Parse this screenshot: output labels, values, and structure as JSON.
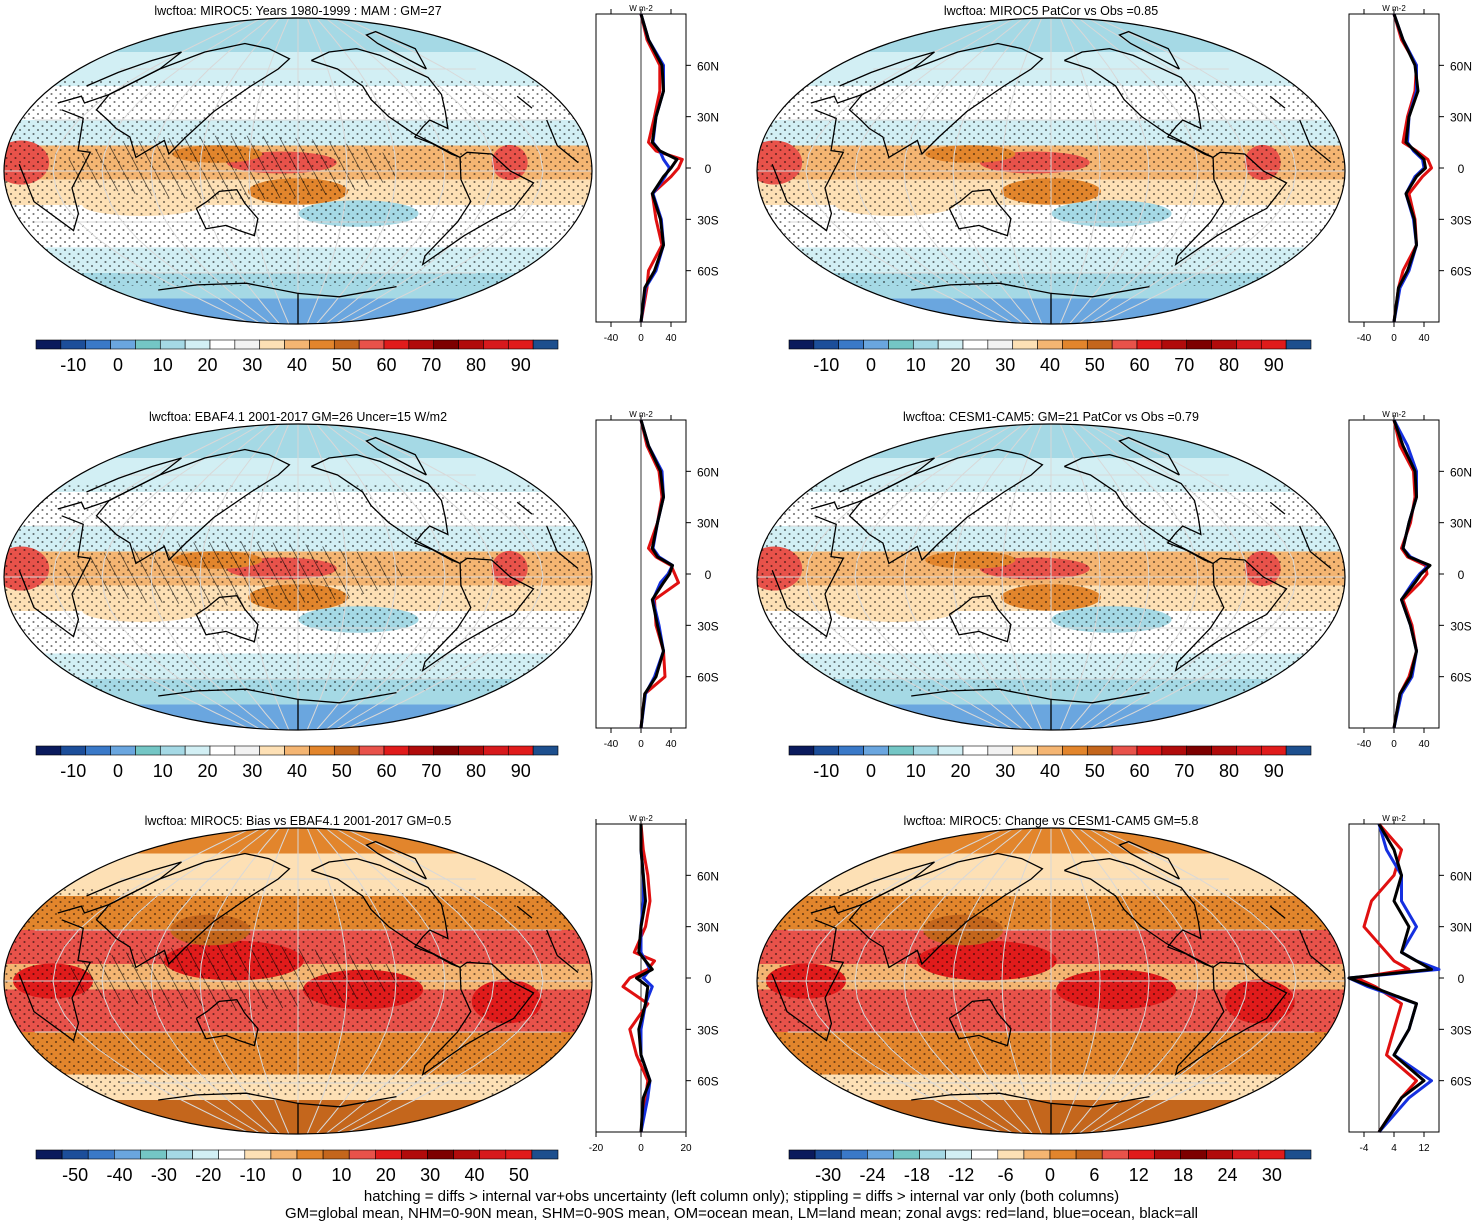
{
  "colors": {
    "full": [
      "#0a1a5c",
      "#1c4e9a",
      "#3a79c8",
      "#6aa6df",
      "#74c6c5",
      "#a5d9e5",
      "#d2eff4",
      "#ffffff",
      "#f2f2f2",
      "#fde0b5",
      "#f4b572",
      "#e2852c",
      "#c4661c",
      "#e8524a",
      "#e01b1b",
      "#b10b0b",
      "#7d0000",
      "#b10b0b",
      "#d7191c",
      "#e01b1b",
      "#1d4f8e"
    ],
    "diff": [
      "#0a1a5c",
      "#1c4e9a",
      "#3a79c8",
      "#6aa6df",
      "#74c6c5",
      "#a5d9e5",
      "#d2eff4",
      "#ffffff",
      "#fde0b5",
      "#f4b572",
      "#e2852c",
      "#c4661c",
      "#e8524a",
      "#e01b1b",
      "#b10b0b",
      "#7d0000",
      "#b10b0b",
      "#d7191c",
      "#e01b1b",
      "#1d4f8e"
    ],
    "line_land": "#e01010",
    "line_ocean": "#1530e0",
    "line_all": "#000000"
  },
  "units": "W m-2",
  "lat_labels": [
    "60N",
    "30N",
    "0",
    "30S",
    "60S"
  ],
  "panels": [
    {
      "title": "lwcftoa: MIROC5: Years 1980-1999 : MAM : GM=27",
      "scale": "full",
      "colorbar_labels": [
        "-10",
        "0",
        "10",
        "20",
        "30",
        "40",
        "50",
        "60",
        "70",
        "80",
        "90"
      ],
      "zonal_ticks": [
        "-40",
        "0",
        "40"
      ],
      "zonal_range": [
        -60,
        60
      ]
    },
    {
      "title": "lwcftoa: MIROC5 PatCor vs Obs =0.85",
      "scale": "full",
      "colorbar_labels": [
        "-10",
        "0",
        "10",
        "20",
        "30",
        "40",
        "50",
        "60",
        "70",
        "80",
        "90"
      ],
      "zonal_ticks": [
        "-40",
        "0",
        "40"
      ],
      "zonal_range": [
        -60,
        60
      ]
    },
    {
      "title": "lwcftoa: EBAF4.1 2001-2017 GM=26 Uncer=15 W/m2",
      "scale": "full",
      "colorbar_labels": [
        "-10",
        "0",
        "10",
        "20",
        "30",
        "40",
        "50",
        "60",
        "70",
        "80",
        "90"
      ],
      "zonal_ticks": [
        "-40",
        "0",
        "40"
      ],
      "zonal_range": [
        -60,
        60
      ]
    },
    {
      "title": "lwcftoa: CESM1-CAM5: GM=21 PatCor vs Obs =0.79",
      "scale": "full",
      "colorbar_labels": [
        "-10",
        "0",
        "10",
        "20",
        "30",
        "40",
        "50",
        "60",
        "70",
        "80",
        "90"
      ],
      "zonal_ticks": [
        "-40",
        "0",
        "40"
      ],
      "zonal_range": [
        -60,
        60
      ]
    },
    {
      "title": "lwcftoa: MIROC5: Bias vs EBAF4.1 2001-2017 GM=0.5",
      "scale": "diff",
      "colorbar_labels": [
        "-50",
        "-40",
        "-30",
        "-20",
        "-10",
        "0",
        "10",
        "20",
        "30",
        "40",
        "50"
      ],
      "zonal_ticks": [
        "-20",
        "0",
        "20"
      ],
      "zonal_range": [
        -20,
        20
      ]
    },
    {
      "title": "lwcftoa: MIROC5: Change vs CESM1-CAM5 GM=5.8",
      "scale": "diff",
      "colorbar_labels": [
        "-30",
        "-24",
        "-18",
        "-12",
        "-6",
        "0",
        "6",
        "12",
        "18",
        "24",
        "30"
      ],
      "zonal_ticks": [
        "-4",
        "4",
        "12"
      ],
      "zonal_range": [
        -8,
        16
      ]
    }
  ],
  "footer": {
    "line1": "hatching = diffs > internal var+obs uncertainty (left column only); stippling = diffs > internal var only (both columns)",
    "line2": "GM=global mean, NHM=0-90N mean, SHM=0-90S mean, OM=ocean mean, LM=land mean; zonal avgs: red=land, blue=ocean, black=all"
  },
  "chart_data": [
    {
      "type": "heatmap",
      "title": "lwcftoa: MIROC5: Years 1980-1999 : MAM : GM=27",
      "zonal_mean": {
        "lat": [
          -90,
          -70,
          -60,
          -45,
          -30,
          -15,
          -5,
          0,
          5,
          10,
          15,
          30,
          45,
          60,
          75,
          90
        ],
        "all": [
          0,
          5,
          18,
          30,
          26,
          15,
          30,
          40,
          48,
          25,
          15,
          20,
          30,
          28,
          10,
          0
        ],
        "land": [
          0,
          8,
          10,
          28,
          20,
          15,
          40,
          50,
          55,
          20,
          10,
          18,
          25,
          25,
          8,
          0
        ],
        "ocean": [
          0,
          6,
          20,
          30,
          27,
          16,
          32,
          38,
          30,
          25,
          16,
          20,
          30,
          30,
          10,
          0
        ]
      }
    },
    {
      "type": "heatmap",
      "title": "lwcftoa: MIROC5 PatCor vs Obs =0.85",
      "zonal_mean": {
        "lat": [
          -90,
          -70,
          -60,
          -45,
          -30,
          -15,
          -5,
          0,
          5,
          10,
          15,
          30,
          45,
          60,
          75,
          90
        ],
        "all": [
          0,
          6,
          18,
          30,
          27,
          16,
          30,
          42,
          40,
          28,
          16,
          20,
          32,
          28,
          12,
          0
        ],
        "land": [
          0,
          6,
          12,
          30,
          28,
          20,
          38,
          50,
          45,
          30,
          12,
          18,
          28,
          30,
          10,
          0
        ],
        "ocean": [
          0,
          8,
          20,
          30,
          26,
          16,
          28,
          40,
          38,
          26,
          18,
          20,
          30,
          30,
          12,
          0
        ]
      }
    },
    {
      "type": "heatmap",
      "title": "lwcftoa: EBAF4.1 2001-2017 GM=26 Uncer=15 W/m2",
      "zonal_mean": {
        "lat": [
          -90,
          -70,
          -60,
          -45,
          -30,
          -15,
          -5,
          0,
          5,
          10,
          15,
          30,
          45,
          60,
          75,
          90
        ],
        "all": [
          0,
          5,
          20,
          30,
          22,
          15,
          30,
          38,
          42,
          22,
          15,
          22,
          30,
          26,
          10,
          0
        ],
        "land": [
          0,
          5,
          32,
          30,
          20,
          18,
          50,
          45,
          40,
          20,
          10,
          22,
          28,
          24,
          8,
          0
        ],
        "ocean": [
          0,
          6,
          18,
          30,
          24,
          16,
          26,
          36,
          42,
          24,
          16,
          22,
          30,
          28,
          10,
          0
        ]
      }
    },
    {
      "type": "heatmap",
      "title": "lwcftoa: CESM1-CAM5: GM=21 PatCor vs Obs =0.79",
      "zonal_mean": {
        "lat": [
          -90,
          -70,
          -60,
          -45,
          -30,
          -15,
          -5,
          0,
          5,
          10,
          15,
          30,
          45,
          60,
          75,
          90
        ],
        "all": [
          0,
          8,
          22,
          30,
          22,
          10,
          28,
          36,
          48,
          20,
          12,
          20,
          30,
          28,
          12,
          0
        ],
        "land": [
          0,
          8,
          20,
          30,
          24,
          12,
          35,
          44,
          42,
          18,
          10,
          22,
          28,
          26,
          8,
          0
        ],
        "ocean": [
          0,
          10,
          24,
          30,
          22,
          10,
          25,
          34,
          46,
          22,
          12,
          20,
          30,
          30,
          18,
          0
        ]
      }
    },
    {
      "type": "heatmap",
      "title": "lwcftoa: MIROC5: Bias vs EBAF4.1 2001-2017 GM=0.5",
      "zonal_mean": {
        "lat": [
          -90,
          -70,
          -60,
          -45,
          -30,
          -15,
          -5,
          0,
          5,
          10,
          15,
          30,
          45,
          60,
          75,
          90
        ],
        "all": [
          0,
          1,
          4,
          0,
          -1,
          2,
          3,
          -2,
          5,
          2,
          -1,
          0,
          2,
          1,
          0,
          0
        ],
        "land": [
          0,
          2,
          3,
          -2,
          -5,
          3,
          -8,
          -5,
          3,
          6,
          -3,
          2,
          4,
          3,
          1,
          0
        ],
        "ocean": [
          0,
          3,
          4,
          0,
          0,
          2,
          5,
          1,
          4,
          2,
          0,
          0,
          1,
          1,
          0,
          0
        ]
      }
    },
    {
      "type": "heatmap",
      "title": "lwcftoa: MIROC5: Change vs CESM1-CAM5 GM=5.8",
      "zonal_mean": {
        "lat": [
          -90,
          -70,
          -60,
          -45,
          -30,
          -15,
          -5,
          0,
          5,
          10,
          15,
          30,
          45,
          60,
          75,
          90
        ],
        "all": [
          0,
          6,
          12,
          4,
          8,
          10,
          -2,
          -8,
          14,
          10,
          6,
          8,
          4,
          6,
          4,
          0
        ],
        "land": [
          0,
          6,
          10,
          2,
          4,
          6,
          -1,
          -6,
          8,
          4,
          2,
          -4,
          -2,
          4,
          6,
          0
        ],
        "ocean": [
          0,
          8,
          14,
          4,
          8,
          10,
          -3,
          -8,
          16,
          10,
          6,
          10,
          6,
          6,
          2,
          0
        ]
      }
    }
  ]
}
